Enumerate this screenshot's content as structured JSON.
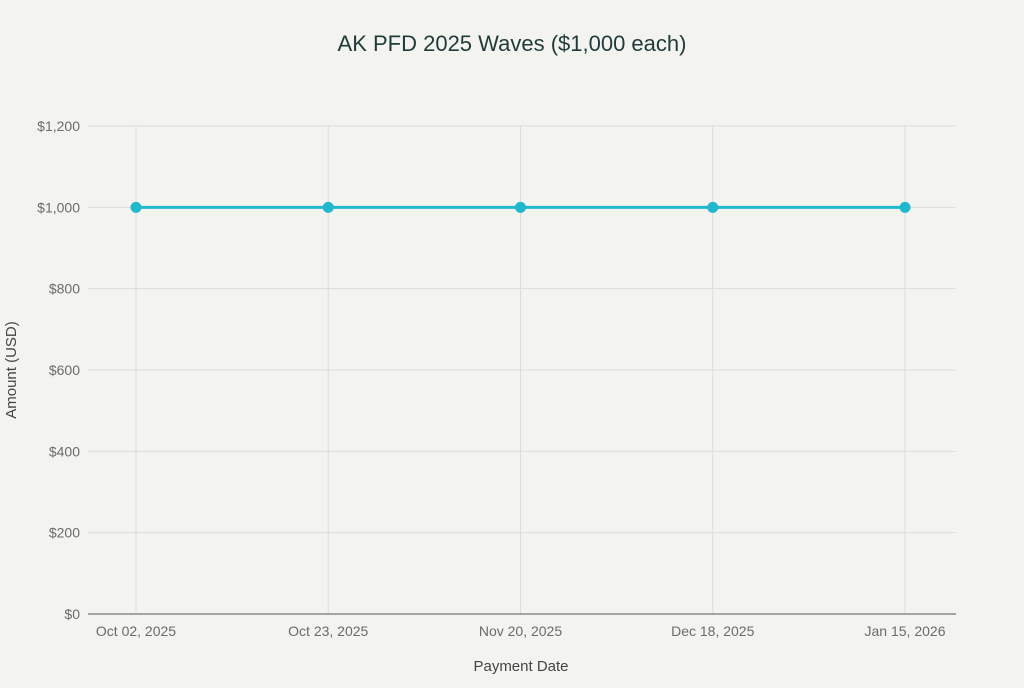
{
  "chart_data": {
    "type": "line",
    "title": "AK PFD 2025 Waves ($1,000 each)",
    "xlabel": "Payment Date",
    "ylabel": "Amount (USD)",
    "categories": [
      "Oct 02, 2025",
      "Oct 23, 2025",
      "Nov 20, 2025",
      "Dec 18, 2025",
      "Jan 15, 2026"
    ],
    "values": [
      1000,
      1000,
      1000,
      1000,
      1000
    ],
    "ylim": [
      0,
      1200
    ],
    "yticks": [
      0,
      200,
      400,
      600,
      800,
      1000,
      1200
    ],
    "ytick_labels": [
      "$0",
      "$200",
      "$400",
      "$600",
      "$800",
      "$1,000",
      "$1,200"
    ],
    "grid": true,
    "markers": true,
    "colors": {
      "line": "#1fb8cd",
      "title": "#1f3b3a",
      "background": "#f3f3ef",
      "grid": "#dcdcd8",
      "tick_text": "#6b6b6b"
    }
  }
}
